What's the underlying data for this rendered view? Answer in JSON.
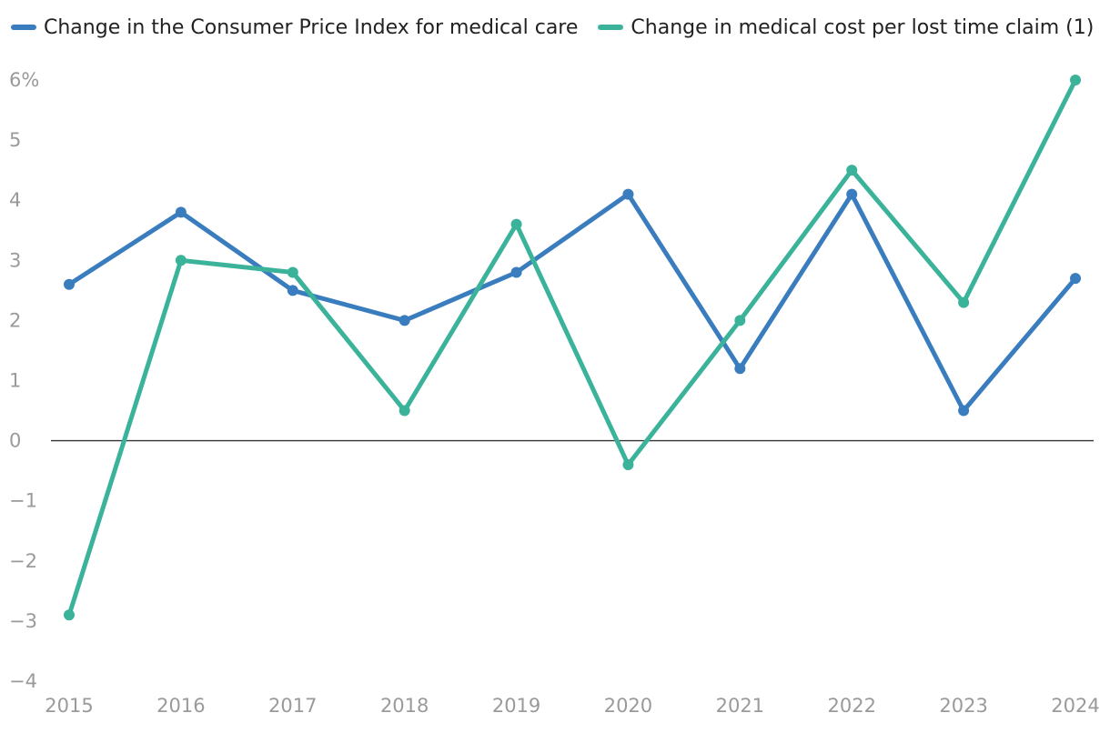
{
  "chart_data": {
    "type": "line",
    "title": "",
    "xlabel": "",
    "ylabel": "",
    "x": [
      "2015",
      "2016",
      "2017",
      "2018",
      "2019",
      "2020",
      "2021",
      "2022",
      "2023",
      "2024"
    ],
    "series": [
      {
        "name": "Change in the Consumer Price Index for medical care",
        "color": "#3a7dbf",
        "values": [
          2.6,
          3.8,
          2.5,
          2.0,
          2.8,
          4.1,
          1.2,
          4.1,
          0.5,
          2.7
        ]
      },
      {
        "name": "Change in medical cost per lost time claim (1)",
        "color": "#3bb39a",
        "values": [
          -2.9,
          3.0,
          2.8,
          0.5,
          3.6,
          -0.4,
          2.0,
          4.5,
          2.3,
          6.0
        ]
      }
    ],
    "ylim": [
      -4,
      6
    ],
    "yticks": [
      {
        "value": 6,
        "label": "6%"
      },
      {
        "value": 5,
        "label": "5"
      },
      {
        "value": 4,
        "label": "4"
      },
      {
        "value": 3,
        "label": "3"
      },
      {
        "value": 2,
        "label": "2"
      },
      {
        "value": 1,
        "label": "1"
      },
      {
        "value": 0,
        "label": "0"
      },
      {
        "value": -1,
        "label": "−1"
      },
      {
        "value": -2,
        "label": "−2"
      },
      {
        "value": -3,
        "label": "−3"
      },
      {
        "value": -4,
        "label": "−4"
      }
    ],
    "zero_line": true,
    "grid": false,
    "legend_position": "top"
  }
}
